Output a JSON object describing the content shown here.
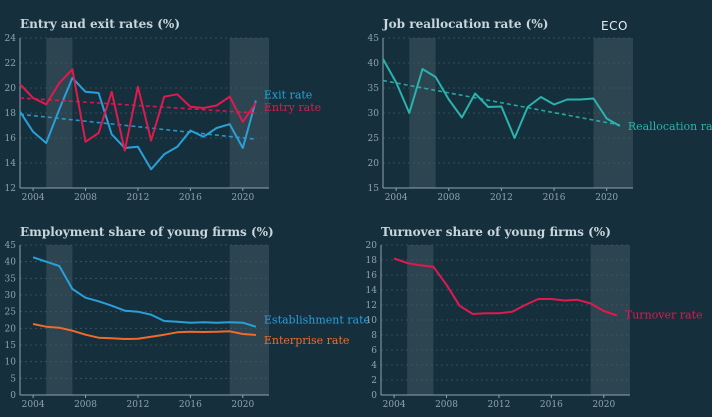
{
  "logo": {
    "text": "ECO"
  },
  "chart_data": [
    {
      "id": "entry-exit",
      "type": "line",
      "title": "Entry and exit rates (%)",
      "xlim": [
        2003,
        2022
      ],
      "xticks": [
        2004,
        2008,
        2012,
        2016,
        2020
      ],
      "ylim": [
        12,
        24
      ],
      "yticks": [
        12,
        14,
        16,
        18,
        20,
        22,
        24
      ],
      "shaded": [
        [
          2005,
          2007
        ],
        [
          2019,
          2022
        ]
      ],
      "grid": true,
      "series": [
        {
          "name": "Exit rate",
          "color": "#2a9fd8",
          "x": [
            2003,
            2004,
            2005,
            2006,
            2007,
            2008,
            2009,
            2010,
            2011,
            2012,
            2013,
            2014,
            2015,
            2016,
            2017,
            2018,
            2019,
            2020,
            2021
          ],
          "values": [
            18.1,
            16.5,
            15.6,
            18.3,
            20.8,
            19.7,
            19.6,
            16.3,
            15.2,
            15.3,
            13.5,
            14.7,
            15.3,
            16.6,
            16.1,
            16.8,
            17.1,
            15.2,
            19.0
          ],
          "trend": [
            17.9,
            15.9
          ]
        },
        {
          "name": "Entry rate",
          "color": "#e0194e",
          "x": [
            2003,
            2004,
            2005,
            2006,
            2007,
            2008,
            2009,
            2010,
            2011,
            2012,
            2013,
            2014,
            2015,
            2016,
            2017,
            2018,
            2019,
            2020,
            2021
          ],
          "values": [
            20.3,
            19.2,
            18.7,
            20.4,
            21.5,
            15.7,
            16.4,
            19.7,
            15.0,
            20.1,
            15.8,
            19.3,
            19.5,
            18.5,
            18.4,
            18.6,
            19.3,
            17.3,
            18.8
          ],
          "trend": [
            19.2,
            18.0
          ]
        }
      ]
    },
    {
      "id": "job-reallocation",
      "type": "line",
      "title": "Job reallocation rate (%)",
      "xlim": [
        2003,
        2022
      ],
      "xticks": [
        2004,
        2008,
        2012,
        2016,
        2020
      ],
      "ylim": [
        15,
        45
      ],
      "yticks": [
        15,
        20,
        25,
        30,
        35,
        40,
        45
      ],
      "shaded": [
        [
          2005,
          2007
        ],
        [
          2019,
          2022
        ]
      ],
      "grid": true,
      "series": [
        {
          "name": "Reallocation rate",
          "color": "#2ab3ad",
          "x": [
            2003,
            2004,
            2005,
            2006,
            2007,
            2008,
            2009,
            2010,
            2011,
            2012,
            2013,
            2014,
            2015,
            2016,
            2017,
            2018,
            2019,
            2020,
            2021
          ],
          "values": [
            40.8,
            36.1,
            30.0,
            38.8,
            37.2,
            32.7,
            29.1,
            33.9,
            31.2,
            31.3,
            25.0,
            31.2,
            33.2,
            31.7,
            32.7,
            32.7,
            32.9,
            28.9,
            27.4
          ],
          "trend": [
            36.5,
            27.6
          ]
        }
      ]
    },
    {
      "id": "employment-share",
      "type": "line",
      "title": "Employment share of young firms (%)",
      "xlim": [
        2003,
        2022
      ],
      "xticks": [
        2004,
        2008,
        2012,
        2016,
        2020
      ],
      "ylim": [
        0,
        45
      ],
      "yticks": [
        0,
        5,
        10,
        15,
        20,
        25,
        30,
        35,
        40,
        45
      ],
      "shaded": [
        [
          2005,
          2007
        ],
        [
          2019,
          2022
        ]
      ],
      "grid": true,
      "series": [
        {
          "name": "Establishment rate",
          "color": "#2a9fd8",
          "x": [
            2004,
            2005,
            2006,
            2007,
            2008,
            2009,
            2010,
            2011,
            2012,
            2013,
            2014,
            2015,
            2016,
            2017,
            2018,
            2019,
            2020,
            2021
          ],
          "values": [
            41.3,
            40.0,
            38.7,
            31.8,
            29.2,
            28.1,
            26.8,
            25.3,
            25.0,
            24.1,
            22.2,
            22.0,
            21.7,
            21.8,
            21.7,
            21.8,
            21.7,
            20.5
          ]
        },
        {
          "name": "Enterprise rate",
          "color": "#f06a2c",
          "x": [
            2004,
            2005,
            2006,
            2007,
            2008,
            2009,
            2010,
            2011,
            2012,
            2013,
            2014,
            2015,
            2016,
            2017,
            2018,
            2019,
            2020,
            2021
          ],
          "values": [
            21.3,
            20.5,
            20.2,
            19.3,
            18.1,
            17.2,
            17.0,
            16.8,
            16.9,
            17.5,
            18.1,
            18.8,
            19.0,
            18.9,
            19.0,
            19.1,
            18.3,
            18.0
          ]
        }
      ]
    },
    {
      "id": "turnover-share",
      "type": "line",
      "title": "Turnover share of young firms (%)",
      "xlim": [
        2003,
        2022
      ],
      "xticks": [
        2004,
        2008,
        2012,
        2016,
        2020
      ],
      "ylim": [
        0,
        20
      ],
      "yticks": [
        0,
        2,
        4,
        6,
        8,
        10,
        12,
        14,
        16,
        18,
        20
      ],
      "shaded": [
        [
          2005,
          2007
        ],
        [
          2019,
          2022
        ]
      ],
      "grid": true,
      "series": [
        {
          "name": "Turnover rate",
          "color": "#e0194e",
          "x": [
            2004,
            2005,
            2006,
            2007,
            2008,
            2009,
            2010,
            2011,
            2012,
            2013,
            2014,
            2015,
            2016,
            2017,
            2018,
            2019,
            2020,
            2021
          ],
          "values": [
            18.2,
            17.6,
            17.3,
            17.1,
            14.7,
            11.9,
            10.8,
            10.9,
            10.9,
            11.1,
            12.0,
            12.8,
            12.8,
            12.6,
            12.7,
            12.2,
            11.2,
            10.6
          ]
        }
      ]
    }
  ]
}
